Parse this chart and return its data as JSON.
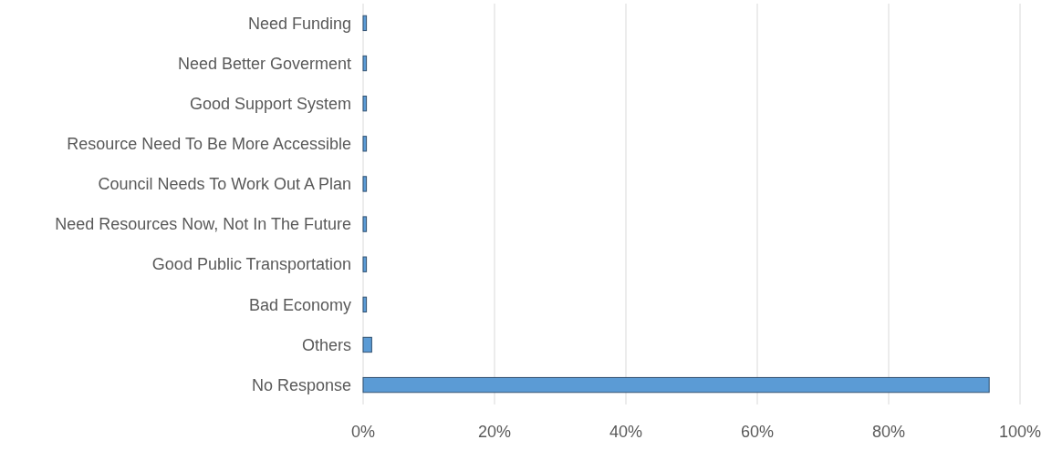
{
  "chart_data": {
    "type": "bar",
    "orientation": "horizontal",
    "categories": [
      "Need Funding",
      "Need Better Goverment",
      "Good Support System",
      "Resource Need To Be More Accessible",
      "Council Needs To Work Out A Plan",
      "Need Resources Now, Not In The Future",
      "Good Public Transportation",
      "Bad Economy",
      "Others",
      "No Response"
    ],
    "values": [
      0.5,
      0.5,
      0.5,
      0.5,
      0.5,
      0.5,
      0.5,
      0.5,
      1.3,
      95.3
    ],
    "color": "#5b9bd5",
    "xlim": [
      0,
      100
    ],
    "xticks": [
      {
        "value": 0,
        "label": "0%"
      },
      {
        "value": 20,
        "label": "20%"
      },
      {
        "value": 40,
        "label": "40%"
      },
      {
        "value": 60,
        "label": "60%"
      },
      {
        "value": 80,
        "label": "80%"
      },
      {
        "value": 100,
        "label": "100%"
      }
    ],
    "grid": "x"
  }
}
